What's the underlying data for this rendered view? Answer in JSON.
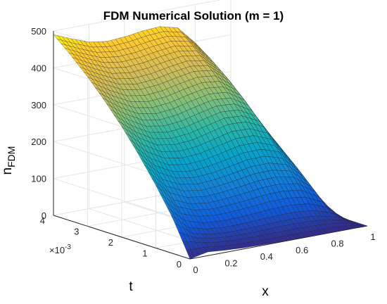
{
  "chart_data": {
    "type": "surface",
    "title": "FDM Numerical Solution (m = 1)",
    "xlabel": "x",
    "ylabel": "t",
    "zlabel": "n",
    "zlabel_subscript": "FDM",
    "t_multiplier": "×10",
    "t_multiplier_exp": "-3",
    "xlim": [
      0,
      1
    ],
    "tlim": [
      0,
      0.004
    ],
    "zlim": [
      0,
      500
    ],
    "x_ticks": [
      0,
      0.2,
      0.4,
      0.6,
      0.8,
      1
    ],
    "x_tick_labels": [
      "0",
      "0.2",
      "0.4",
      "0.6",
      "0.8",
      "1"
    ],
    "t_ticks": [
      0,
      0.001,
      0.002,
      0.003,
      0.004
    ],
    "t_tick_labels": [
      "0",
      "1",
      "2",
      "3",
      "4"
    ],
    "z_ticks": [
      0,
      100,
      200,
      300,
      400,
      500
    ],
    "z_tick_labels": [
      "0",
      "100",
      "200",
      "300",
      "400",
      "500"
    ],
    "colormap": "parula",
    "colors": [
      "#352a87",
      "#0f5cdd",
      "#1481d6",
      "#06a4ca",
      "#2eb7a4",
      "#87bf77",
      "#d1bb59",
      "#fec832",
      "#f9fb0e"
    ],
    "grid": true,
    "surface": {
      "x": [
        0,
        0.1,
        0.2,
        0.3,
        0.4,
        0.5,
        0.6,
        0.7,
        0.8,
        0.9,
        1
      ],
      "t": [
        0,
        0.0005,
        0.001,
        0.0015,
        0.002,
        0.0025,
        0.003,
        0.0035,
        0.004
      ],
      "n_rows": [
        [
          0,
          10,
          6,
          3,
          2,
          1,
          1,
          0,
          0,
          0,
          0
        ],
        [
          95,
          52,
          40,
          36,
          36,
          38,
          40,
          40,
          36,
          23,
          0
        ],
        [
          170,
          122,
          102,
          96,
          99,
          104,
          110,
          111,
          103,
          72,
          0
        ],
        [
          238,
          191,
          166,
          158,
          161,
          170,
          180,
          181,
          166,
          118,
          0
        ],
        [
          300,
          260,
          232,
          224,
          228,
          240,
          252,
          250,
          228,
          160,
          0
        ],
        [
          355,
          320,
          294,
          285,
          290,
          302,
          312,
          308,
          278,
          198,
          0
        ],
        [
          405,
          376,
          352,
          344,
          348,
          358,
          366,
          360,
          323,
          230,
          0
        ],
        [
          450,
          425,
          404,
          397,
          400,
          408,
          414,
          405,
          362,
          258,
          0
        ],
        [
          490,
          470,
          452,
          445,
          448,
          455,
          458,
          446,
          396,
          280,
          0
        ]
      ]
    }
  }
}
